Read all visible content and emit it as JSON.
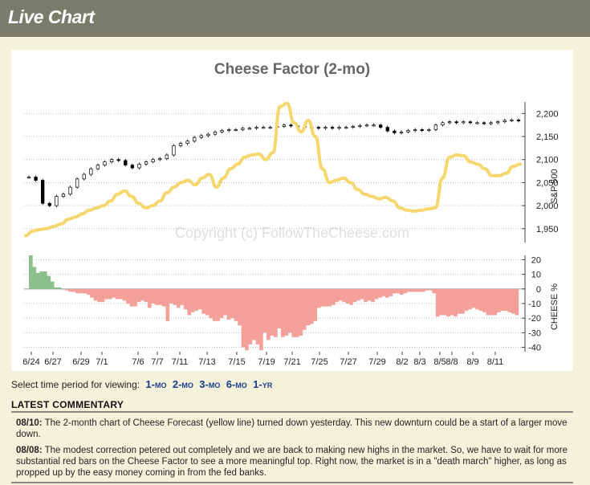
{
  "header": {
    "title": "Live Chart"
  },
  "chart_data": {
    "type": "line",
    "title": "Cheese Factor (2-mo)",
    "watermark": "Copyright (c) FollowTheCheese.com",
    "x_labels": [
      "6/24",
      "6/27",
      "6/29",
      "7/1",
      "7/6",
      "7/7",
      "7/11",
      "7/13",
      "7/15",
      "7/19",
      "7/21",
      "7/25",
      "7/27",
      "7/29",
      "8/2",
      "8/3",
      "8/5",
      "8/8",
      "8/9",
      "8/11"
    ],
    "upper": {
      "ylabel": "S&P 500",
      "yticks": [
        1950,
        2000,
        2050,
        2100,
        2150,
        2200
      ],
      "ylim": [
        1920,
        2225
      ],
      "series": [
        {
          "kind": "candlestick",
          "color": "#000000",
          "values": [
            2062,
            2055,
            2005,
            2000,
            2020,
            2025,
            2040,
            2058,
            2068,
            2080,
            2088,
            2095,
            2100,
            2098,
            2088,
            2082,
            2090,
            2095,
            2100,
            2102,
            2110,
            2130,
            2135,
            2140,
            2148,
            2152,
            2155,
            2160,
            2163,
            2165,
            2165,
            2168,
            2168,
            2170,
            2170,
            2170,
            2172,
            2175,
            2173,
            2172,
            2170,
            2170,
            2168,
            2170,
            2168,
            2170,
            2170,
            2172,
            2174,
            2175,
            2175,
            2170,
            2162,
            2158,
            2160,
            2163,
            2165,
            2163,
            2165,
            2175,
            2180,
            2182,
            2180,
            2182,
            2180,
            2180,
            2178,
            2180,
            2182,
            2185,
            2186,
            2184
          ]
        },
        {
          "kind": "line",
          "color": "#f5d76e",
          "values": [
            1935,
            1945,
            1948,
            1950,
            1955,
            1960,
            1970,
            1975,
            1982,
            1990,
            1995,
            2000,
            2010,
            2025,
            2032,
            2020,
            2005,
            1995,
            2000,
            2010,
            2028,
            2040,
            2050,
            2055,
            2045,
            2060,
            2068,
            2040,
            2060,
            2080,
            2090,
            2105,
            2110,
            2112,
            2100,
            2115,
            2215,
            2222,
            2180,
            2160,
            2185,
            2150,
            2080,
            2050,
            2055,
            2060,
            2050,
            2035,
            2025,
            2020,
            2015,
            2018,
            2010,
            1995,
            1990,
            1988,
            1990,
            1993,
            1995,
            2060,
            2105,
            2110,
            2108,
            2095,
            2090,
            2080,
            2065,
            2065,
            2070,
            2085,
            2090
          ]
        }
      ]
    },
    "lower": {
      "ylabel": "CHEESE %",
      "yticks": [
        20,
        10,
        0,
        -10,
        -20,
        -30,
        -40
      ],
      "ylim": [
        -43,
        23
      ],
      "series": [
        {
          "kind": "bar",
          "name": "Cheese Factor",
          "pos_color": "#8cc08c",
          "neg_color": "#f4a09a",
          "values": [
            23,
            15,
            11,
            12,
            12,
            9,
            5,
            1,
            1,
            0,
            -1,
            -2,
            -2,
            -3,
            -3,
            -3,
            -4,
            -6,
            -8,
            -9,
            -9,
            -7,
            -7,
            -6,
            -7,
            -7,
            -8,
            -10,
            -12,
            -12,
            -9,
            -8,
            -9,
            -13,
            -10,
            -11,
            -11,
            -12,
            -22,
            -10,
            -11,
            -13,
            -11,
            -14,
            -18,
            -16,
            -15,
            -14,
            -17,
            -18,
            -20,
            -22,
            -22,
            -20,
            -18,
            -21,
            -20,
            -22,
            -25,
            -40,
            -42,
            -38,
            -35,
            -38,
            -42,
            -30,
            -35,
            -32,
            -33,
            -27,
            -33,
            -32,
            -30,
            -33,
            -33,
            -32,
            -28,
            -25,
            -24,
            -22,
            -13,
            -12,
            -12,
            -12,
            -11,
            -9,
            -8,
            -9,
            -10,
            -11,
            -9,
            -8,
            -7,
            -9,
            -8,
            -9,
            -7,
            -6,
            -5,
            -6,
            -5,
            -3,
            -3,
            -4,
            -3,
            -2,
            -2,
            -2,
            -2,
            -2,
            -1,
            -1,
            -3,
            -19,
            -18,
            -18,
            -19,
            -18,
            -19,
            -17,
            -17,
            -15,
            -14,
            -13,
            -14,
            -15,
            -16,
            -18,
            -18,
            -18,
            -16,
            -15,
            -15,
            -16,
            -17,
            -18
          ]
        }
      ]
    }
  },
  "period_selector": {
    "label": "Select time period for viewing:",
    "options": [
      {
        "num": "1",
        "unit": "MO"
      },
      {
        "num": "2",
        "unit": "MO"
      },
      {
        "num": "3",
        "unit": "MO"
      },
      {
        "num": "6",
        "unit": "MO"
      },
      {
        "num": "1",
        "unit": "YR"
      }
    ]
  },
  "commentary": {
    "title": "LATEST COMMENTARY",
    "entries": [
      {
        "date": "08/10:",
        "text": "The 2-month chart of Cheese Forecast (yellow line) turned down yesterday. This new downturn could be a start of a larger move down."
      },
      {
        "date": "08/08:",
        "text": "The modest correction petered out completely and we are back to making new highs in the market. So, we have to wait for more substantial red bars on the Cheese Factor to see a more meaningful top. Right now, the market is in a \"death march\" higher, as long as propped up by the easy money coming in from the fed banks."
      }
    ]
  },
  "colors": {
    "header_bg": "#7b7b6b",
    "page_bg": "#f5f2dc",
    "link": "#1c3c8c",
    "yellow_line": "#f5d76e",
    "red_bar": "#f4a09a",
    "green_bar": "#8cc08c"
  }
}
